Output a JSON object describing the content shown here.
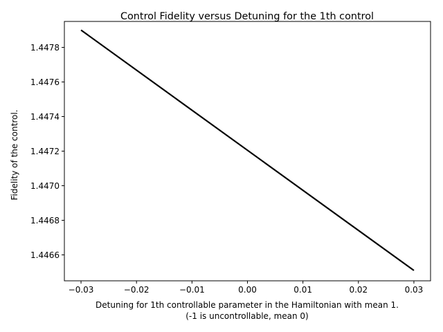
{
  "chart_data": {
    "type": "line",
    "title": "Control Fidelity versus Detuning for the 1th control",
    "xlabel_line1": "Detuning for 1th controllable parameter in the Hamiltonian with mean 1.",
    "xlabel_line2": "(-1 is uncontrollable, mean 0)",
    "ylabel": "Fidelity of the control.",
    "xlim": [
      -0.033,
      0.033
    ],
    "ylim": [
      1.44645,
      1.44795
    ],
    "x_ticks": [
      -0.03,
      -0.02,
      -0.01,
      0.0,
      0.01,
      0.02,
      0.03
    ],
    "x_tick_labels": [
      "−0.03",
      "−0.02",
      "−0.01",
      "0.00",
      "0.01",
      "0.02",
      "0.03"
    ],
    "y_ticks": [
      1.4466,
      1.4468,
      1.447,
      1.4472,
      1.4474,
      1.4476,
      1.4478
    ],
    "y_tick_labels": [
      "1.4466",
      "1.4468",
      "1.4470",
      "1.4472",
      "1.4474",
      "1.4476",
      "1.4478"
    ],
    "grid": false,
    "series": [
      {
        "color": "#000000",
        "x": [
          -0.03,
          0.03
        ],
        "y": [
          1.4479,
          1.44651
        ]
      }
    ]
  }
}
